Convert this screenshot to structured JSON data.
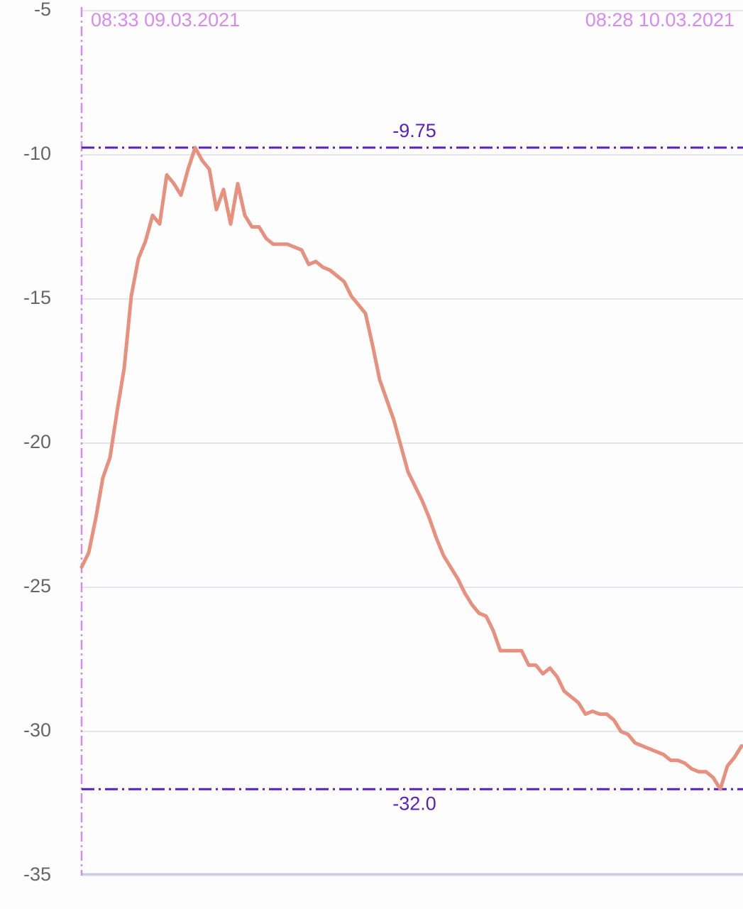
{
  "chart_data": {
    "type": "line",
    "annotations": [
      "08:33 09.03.2021",
      "08:28 10.03.2021"
    ],
    "values": [
      -24.3,
      -23.8,
      -22.6,
      -21.2,
      -20.5,
      -18.9,
      -17.4,
      -14.9,
      -13.6,
      -13.0,
      -12.1,
      -12.4,
      -10.7,
      -11.0,
      -11.4,
      -10.5,
      -9.75,
      -10.2,
      -10.5,
      -11.9,
      -11.2,
      -12.4,
      -11.0,
      -12.1,
      -12.5,
      -12.5,
      -12.9,
      -13.1,
      -13.1,
      -13.1,
      -13.2,
      -13.3,
      -13.8,
      -13.7,
      -13.9,
      -14.0,
      -14.2,
      -14.4,
      -14.9,
      -15.2,
      -15.5,
      -16.6,
      -17.8,
      -18.5,
      -19.2,
      -20.1,
      -21.0,
      -21.5,
      -22.0,
      -22.6,
      -23.3,
      -23.9,
      -24.3,
      -24.7,
      -25.2,
      -25.6,
      -25.9,
      -26.0,
      -26.5,
      -27.2,
      -27.2,
      -27.2,
      -27.2,
      -27.7,
      -27.7,
      -28.0,
      -27.8,
      -28.1,
      -28.6,
      -28.8,
      -29.0,
      -29.4,
      -29.3,
      -29.4,
      -29.4,
      -29.6,
      -30.0,
      -30.1,
      -30.4,
      -30.5,
      -30.6,
      -30.7,
      -30.8,
      -31.0,
      -31.0,
      -31.1,
      -31.3,
      -31.4,
      -31.4,
      -31.6,
      -32.0,
      -31.2,
      -30.9,
      -30.5
    ],
    "color": "#e8907e",
    "ylim": [
      -35,
      -5
    ],
    "yticks": [
      -5,
      -10,
      -15,
      -20,
      -25,
      -30,
      -35
    ],
    "grid": true,
    "reference_lines": [
      -9.75,
      {
        "value": -32,
        "label": "-32.0"
      }
    ],
    "reference_color": "#5b1fbf",
    "annotation_color": "#d78bf0"
  }
}
